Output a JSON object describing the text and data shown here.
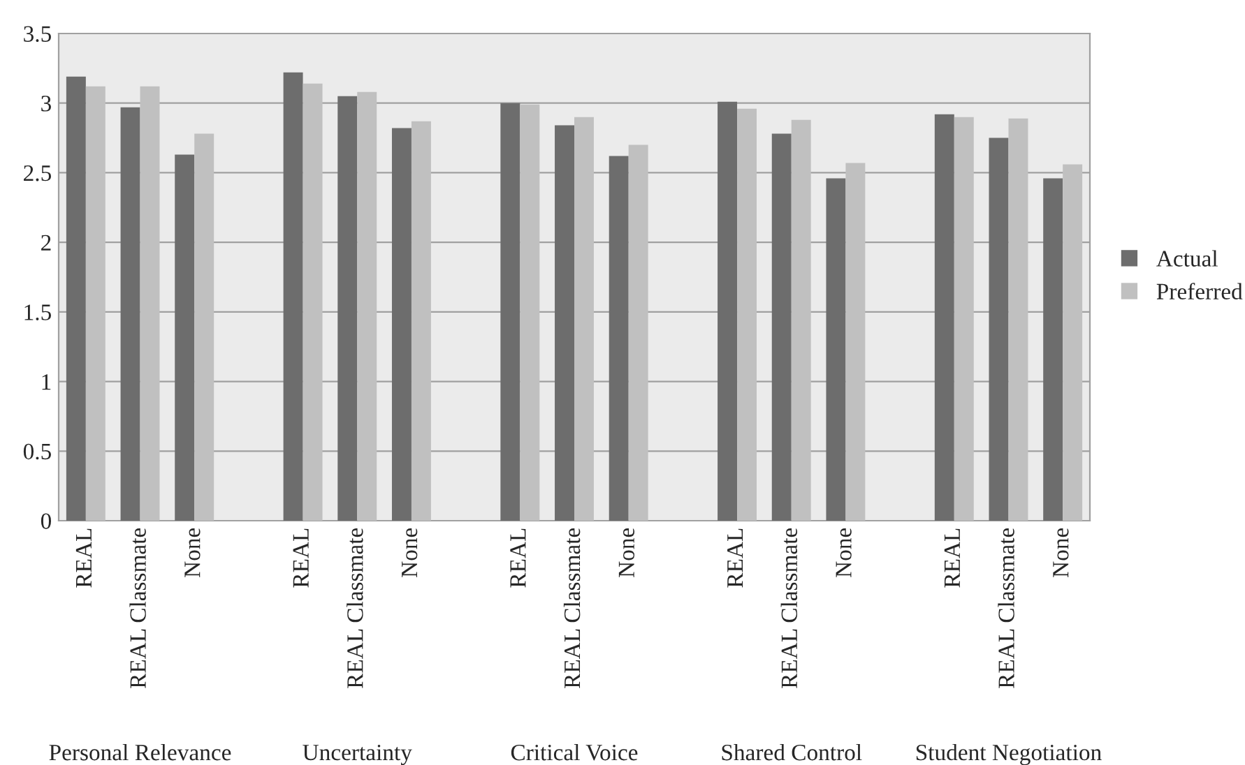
{
  "chart_data": {
    "type": "bar",
    "categories": [
      "REAL",
      "REAL Classmate",
      "None",
      null,
      "REAL",
      "REAL Classmate",
      "None",
      null,
      "REAL",
      "REAL Classmate",
      "None",
      null,
      "REAL",
      "REAL Classmate",
      "None",
      null,
      "REAL",
      "REAL Classmate",
      "None"
    ],
    "series": [
      {
        "name": "Actual",
        "color": "#6d6d6d",
        "values": [
          3.19,
          2.97,
          2.63,
          null,
          3.22,
          3.05,
          2.82,
          null,
          3.0,
          2.84,
          2.62,
          null,
          3.01,
          2.78,
          2.46,
          null,
          2.92,
          2.75,
          2.46
        ]
      },
      {
        "name": "Preferred",
        "color": "#c0c0c0",
        "values": [
          3.12,
          3.12,
          2.78,
          null,
          3.14,
          3.08,
          2.87,
          null,
          2.99,
          2.9,
          2.7,
          null,
          2.96,
          2.88,
          2.57,
          null,
          2.9,
          2.89,
          2.56
        ]
      }
    ],
    "annotations": [
      "Personal Relevance",
      "Uncertainty",
      "Critical Voice",
      "Shared Control",
      "Student Negotiation"
    ],
    "ylim": [
      0,
      3.5
    ],
    "yticks": [
      0,
      0.5,
      1,
      1.5,
      2,
      2.5,
      3,
      3.5
    ],
    "grid": "y",
    "legend": "right"
  }
}
